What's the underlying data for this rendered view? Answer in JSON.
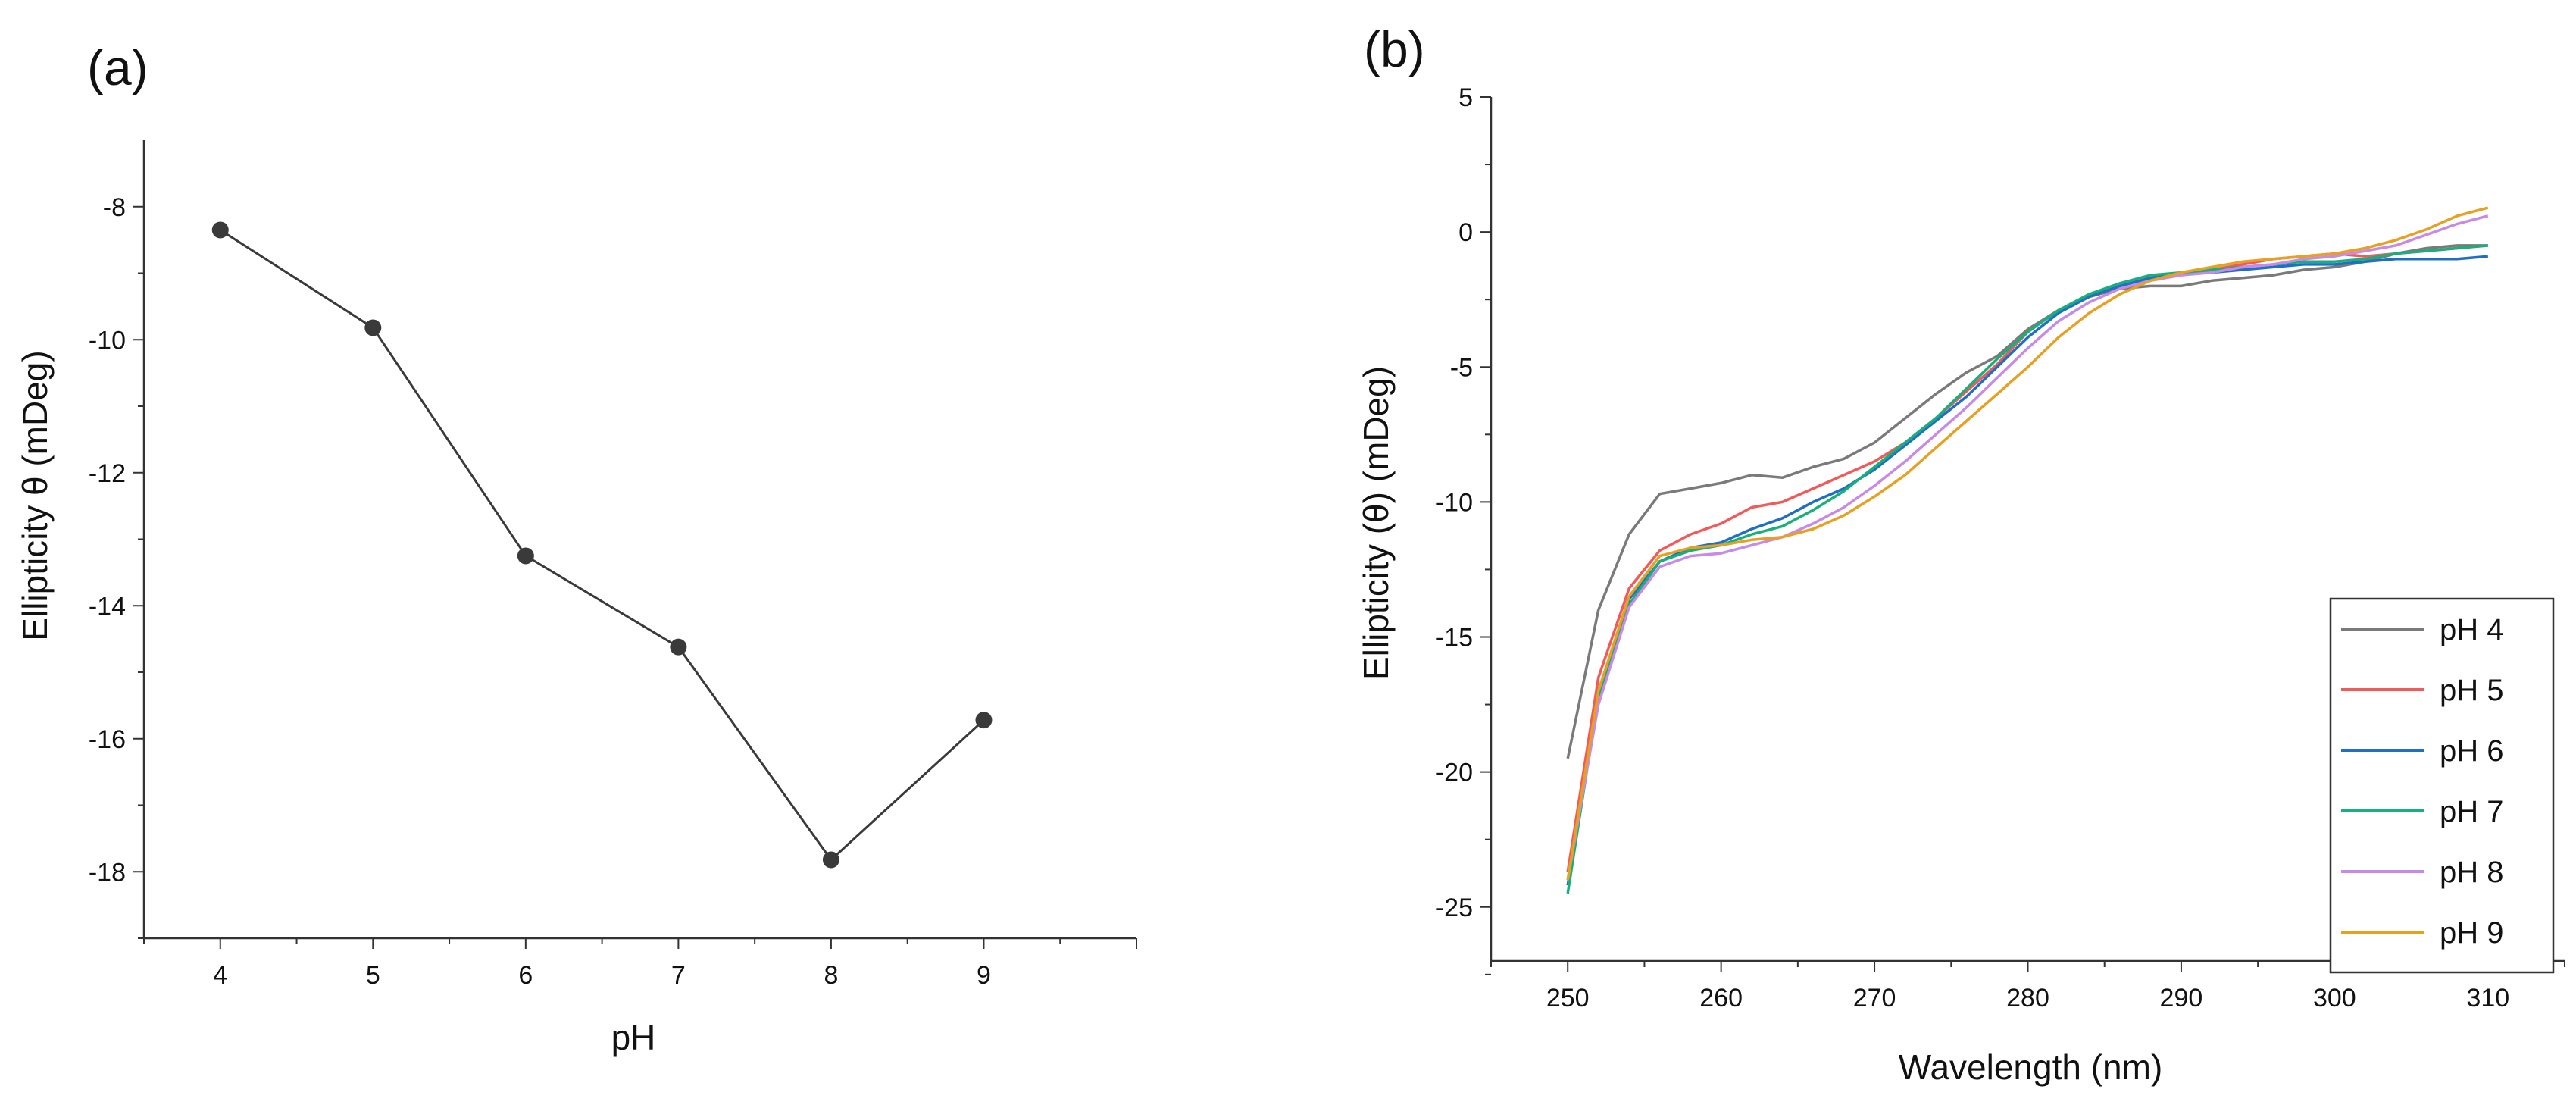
{
  "chart_data": [
    {
      "panel_label": "(a)",
      "type": "line",
      "xlabel": "pH",
      "ylabel": "Ellipticity θ (mDeg)",
      "x": [
        4,
        5,
        6,
        7,
        8,
        9
      ],
      "values": [
        -8.35,
        -9.82,
        -13.25,
        -14.62,
        -17.82,
        -15.72
      ],
      "xlim": [
        3.5,
        10
      ],
      "ylim": [
        -19,
        -7
      ],
      "xticks": [
        "4",
        "5",
        "6",
        "7",
        "8",
        "9"
      ],
      "yticks": [
        "-8",
        "-10",
        "-12",
        "-14",
        "-16",
        "-18"
      ],
      "marker": "circle",
      "color": "#3a3a3a",
      "grid": false
    },
    {
      "panel_label": "(b)",
      "type": "line",
      "xlabel": "Wavelength (nm)",
      "ylabel": "Ellipticity (θ) (mDeg)",
      "xlim": [
        245,
        315
      ],
      "ylim": [
        -27,
        5
      ],
      "xticks": [
        "250",
        "260",
        "270",
        "280",
        "290",
        "300",
        "310"
      ],
      "yticks": [
        "5",
        "0",
        "-5",
        "-10",
        "-15",
        "-20",
        "-25"
      ],
      "legend_position": "bottom-right",
      "grid": false,
      "x": [
        250,
        252,
        254,
        256,
        258,
        260,
        262,
        264,
        266,
        268,
        270,
        272,
        274,
        276,
        278,
        280,
        282,
        284,
        286,
        288,
        290,
        292,
        294,
        296,
        298,
        300,
        302,
        304,
        306,
        308,
        310
      ],
      "series": [
        {
          "name": "pH 4",
          "color": "#7a7a7a",
          "values": [
            -19.5,
            -14.0,
            -11.2,
            -9.7,
            -9.5,
            -9.3,
            -9.0,
            -9.1,
            -8.7,
            -8.4,
            -7.8,
            -6.9,
            -6.0,
            -5.2,
            -4.6,
            -3.6,
            -2.9,
            -2.4,
            -2.1,
            -2.0,
            -2.0,
            -1.8,
            -1.7,
            -1.6,
            -1.4,
            -1.3,
            -1.1,
            -0.8,
            -0.6,
            -0.5,
            -0.5
          ]
        },
        {
          "name": "pH 5",
          "color": "#f25a5a",
          "values": [
            -23.7,
            -16.5,
            -13.2,
            -11.8,
            -11.2,
            -10.8,
            -10.2,
            -10.0,
            -9.5,
            -9.0,
            -8.5,
            -7.8,
            -6.9,
            -5.9,
            -4.9,
            -3.7,
            -2.9,
            -2.4,
            -2.0,
            -1.7,
            -1.5,
            -1.4,
            -1.2,
            -1.0,
            -0.9,
            -0.8,
            -0.9,
            -0.8,
            -0.7,
            -0.6,
            -0.5
          ]
        },
        {
          "name": "pH 6",
          "color": "#1f6fc6",
          "values": [
            -24.2,
            -17.0,
            -13.6,
            -12.2,
            -11.7,
            -11.5,
            -11.0,
            -10.6,
            -10.0,
            -9.5,
            -8.8,
            -7.9,
            -7.0,
            -6.1,
            -5.0,
            -3.9,
            -3.0,
            -2.4,
            -2.0,
            -1.7,
            -1.5,
            -1.5,
            -1.4,
            -1.3,
            -1.2,
            -1.2,
            -1.1,
            -1.0,
            -1.0,
            -1.0,
            -0.9
          ]
        },
        {
          "name": "pH 7",
          "color": "#17b07a",
          "values": [
            -24.5,
            -17.2,
            -13.8,
            -12.2,
            -11.8,
            -11.6,
            -11.2,
            -10.9,
            -10.3,
            -9.6,
            -8.7,
            -7.8,
            -6.9,
            -5.8,
            -4.7,
            -3.7,
            -2.9,
            -2.3,
            -1.9,
            -1.6,
            -1.5,
            -1.4,
            -1.3,
            -1.2,
            -1.1,
            -1.1,
            -1.0,
            -0.8,
            -0.7,
            -0.6,
            -0.5
          ]
        },
        {
          "name": "pH 8",
          "color": "#c78ae6",
          "values": [
            -24.0,
            -17.5,
            -13.9,
            -12.4,
            -12.0,
            -11.9,
            -11.6,
            -11.3,
            -10.8,
            -10.2,
            -9.4,
            -8.5,
            -7.5,
            -6.5,
            -5.4,
            -4.3,
            -3.3,
            -2.6,
            -2.1,
            -1.8,
            -1.6,
            -1.5,
            -1.3,
            -1.2,
            -1.0,
            -0.9,
            -0.7,
            -0.5,
            -0.1,
            0.3,
            0.6
          ]
        },
        {
          "name": "pH 9",
          "color": "#e8a020",
          "values": [
            -24.0,
            -17.0,
            -13.5,
            -12.0,
            -11.7,
            -11.6,
            -11.4,
            -11.3,
            -11.0,
            -10.5,
            -9.8,
            -9.0,
            -8.0,
            -7.0,
            -6.0,
            -5.0,
            -3.9,
            -3.0,
            -2.3,
            -1.8,
            -1.5,
            -1.3,
            -1.1,
            -1.0,
            -0.9,
            -0.8,
            -0.6,
            -0.3,
            0.1,
            0.6,
            0.9
          ]
        }
      ]
    }
  ]
}
